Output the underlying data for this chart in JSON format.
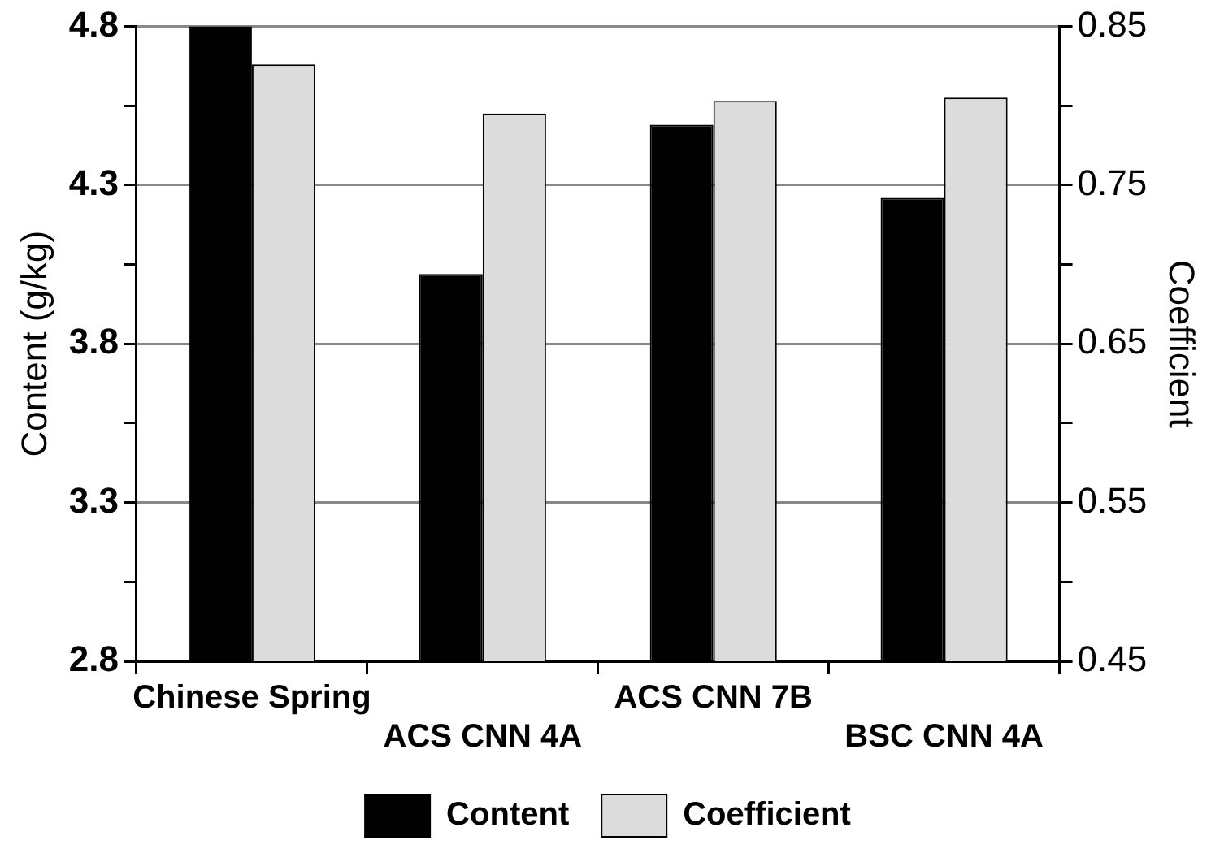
{
  "chart_data": {
    "type": "bar",
    "ylabel": "Content (g/kg)",
    "y2label": "Coefficient",
    "categories": [
      "Chinese Spring",
      "ACS CNN 4A",
      "ACS CNN 7B",
      "BSC CNN 4A"
    ],
    "series": [
      {
        "name": "Content",
        "color": "#000000",
        "values": [
          4.8,
          4.02,
          4.49,
          4.26
        ]
      },
      {
        "name": "Coefficient",
        "color": "#dcdcdc",
        "axis": "y2",
        "values": [
          0.826,
          0.795,
          0.803,
          0.805
        ]
      }
    ],
    "ylim": [
      2.8,
      4.8
    ],
    "yticks": [
      2.8,
      {
        "value": 3.05,
        "label": null
      },
      3.3,
      {
        "value": 3.55,
        "label": null
      },
      3.8,
      {
        "value": 4.05,
        "label": null
      },
      4.3,
      {
        "value": 4.55,
        "label": null
      },
      4.8
    ],
    "y2lim": [
      0.45,
      0.85
    ],
    "y2ticks": [
      0.45,
      {
        "value": 0.5,
        "label": null
      },
      0.55,
      {
        "value": 0.6,
        "label": null
      },
      0.65,
      {
        "value": 0.7,
        "label": null
      },
      0.75,
      {
        "value": 0.8,
        "label": null
      },
      0.85
    ],
    "grid": "y",
    "legend": "bottom"
  }
}
